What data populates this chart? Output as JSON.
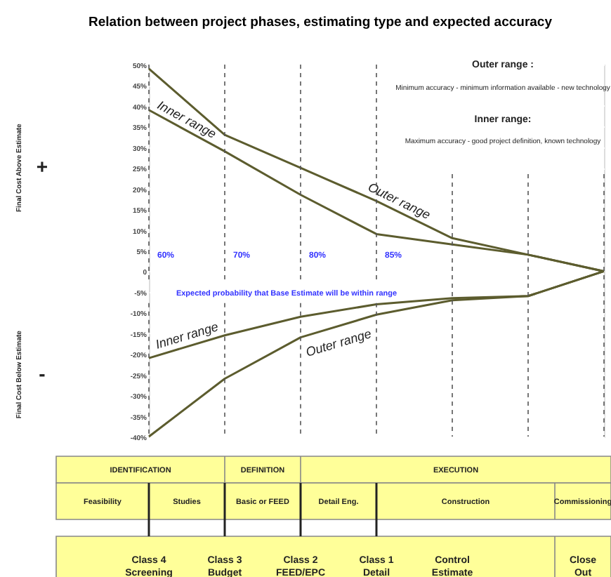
{
  "chart_data": {
    "type": "line",
    "title": "Relation between project phases, estimating type and  expected accuracy",
    "categories": [
      null,
      null,
      null,
      null,
      null,
      null,
      null
    ],
    "series": [
      {
        "name": "Outer range",
        "color": "#5c5c2e",
        "values": [
          49,
          33,
          25,
          17,
          8,
          4,
          0
        ]
      },
      {
        "name": "Inner range",
        "color": "#5c5c2e",
        "values": [
          39,
          29,
          18.5,
          9,
          6.5,
          4,
          0
        ]
      },
      {
        "name": "Inner range",
        "color": "#5c5c2e",
        "values": [
          -21,
          -15.5,
          -11,
          -8,
          -6.5,
          -6,
          0
        ]
      },
      {
        "name": "Outer range",
        "color": "#5c5c2e",
        "values": [
          -40,
          -26,
          -16,
          -10.5,
          -7,
          -6,
          0
        ]
      }
    ],
    "ylim": [
      -40,
      50
    ],
    "yticks": [
      {
        "value": 50,
        "label": "50%"
      },
      {
        "value": 45,
        "label": "45%"
      },
      {
        "value": 40,
        "label": "40%"
      },
      {
        "value": 35,
        "label": "35%"
      },
      {
        "value": 30,
        "label": "30%"
      },
      {
        "value": 25,
        "label": "25%"
      },
      {
        "value": 20,
        "label": "20%"
      },
      {
        "value": 15,
        "label": "15%"
      },
      {
        "value": 10,
        "label": "10%"
      },
      {
        "value": 5,
        "label": "5%"
      },
      {
        "value": 0,
        "label": "0"
      },
      {
        "value": -5,
        "label": "-5%"
      },
      {
        "value": -10,
        "label": "-10%"
      },
      {
        "value": -15,
        "label": "-15%"
      },
      {
        "value": -20,
        "label": "-20%"
      },
      {
        "value": -25,
        "label": "-25%"
      },
      {
        "value": -30,
        "label": "-30%"
      },
      {
        "value": -35,
        "label": "-35%"
      },
      {
        "value": -40,
        "label": "-40%"
      }
    ],
    "grid": true,
    "tick_labels": "y",
    "annotations": [
      "+",
      "-",
      "Final Cost Above Estimate",
      "Final Cost Below Estimate",
      "Outer range :",
      "Minimum accuracy - minimum information available - new technology",
      "Inner range:",
      "Maximum accuracy - good project definition, known technology",
      "Expected probability that Base Estimate will be within range",
      "60%",
      "70%",
      "80%",
      "85%",
      "IDENTIFICATION",
      "DEFINITION",
      "EXECUTION",
      "Feasibility",
      "Studies",
      "Basic or FEED",
      "Detail Eng.",
      "Construction",
      "Commissioning",
      "Class 4\nScreening",
      "Class 3\nBudget",
      "Class 2\nFEED/EPC",
      "Class 1\nDetail",
      "Control\nEstimate",
      "Close\nOut"
    ]
  }
}
